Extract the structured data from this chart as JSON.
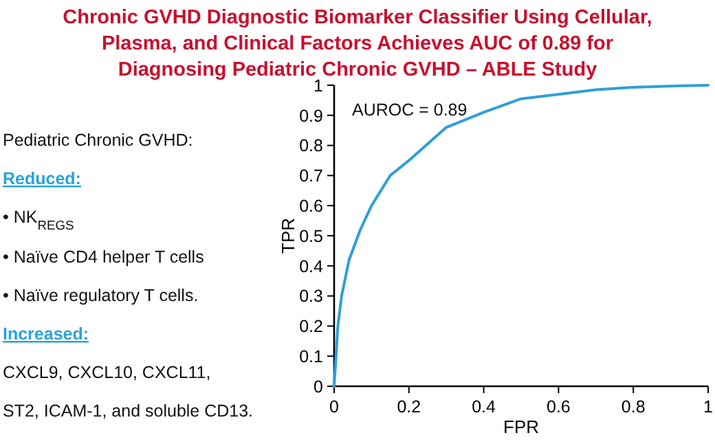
{
  "chart_data": {
    "type": "line",
    "title": "Chronic GVHD Diagnostic Biomarker Classifier Using Cellular,\nPlasma, and Clinical Factors Achieves AUC of 0.89 for\nDiagnosing Pediatric Chronic GVHD – ABLE Study",
    "xlabel": "FPR",
    "ylabel": "TPR",
    "x": [
      0,
      0.005,
      0.01,
      0.02,
      0.04,
      0.07,
      0.1,
      0.15,
      0.2,
      0.3,
      0.4,
      0.5,
      0.6,
      0.7,
      0.8,
      0.9,
      1
    ],
    "series": [
      {
        "color": "#2e9fd8",
        "values": [
          0,
          0.1,
          0.2,
          0.3,
          0.42,
          0.52,
          0.6,
          0.7,
          0.75,
          0.86,
          0.91,
          0.955,
          0.97,
          0.985,
          0.993,
          0.997,
          1
        ]
      }
    ],
    "xlim": [
      0,
      1
    ],
    "ylim": [
      0,
      1
    ],
    "xticks": [
      0,
      0.2,
      0.4,
      0.6,
      0.8,
      1
    ],
    "yticks": [
      0,
      0.1,
      0.2,
      0.3,
      0.4,
      0.5,
      0.6,
      0.7,
      0.8,
      0.9,
      1
    ],
    "grid": false,
    "marker": "none",
    "line_style": "solid",
    "annotations": [
      "AUROC = 0.89",
      "Pediatric Chronic GVHD:",
      "Reduced:",
      "• NK$_{REGS}$",
      "• Naïve CD4 helper T cells",
      "• Naïve regulatory T cells.",
      "Increased:",
      "CXCL9, CXCL10, CXCL11,",
      "ST2, ICAM-1, and soluble CD13."
    ]
  }
}
